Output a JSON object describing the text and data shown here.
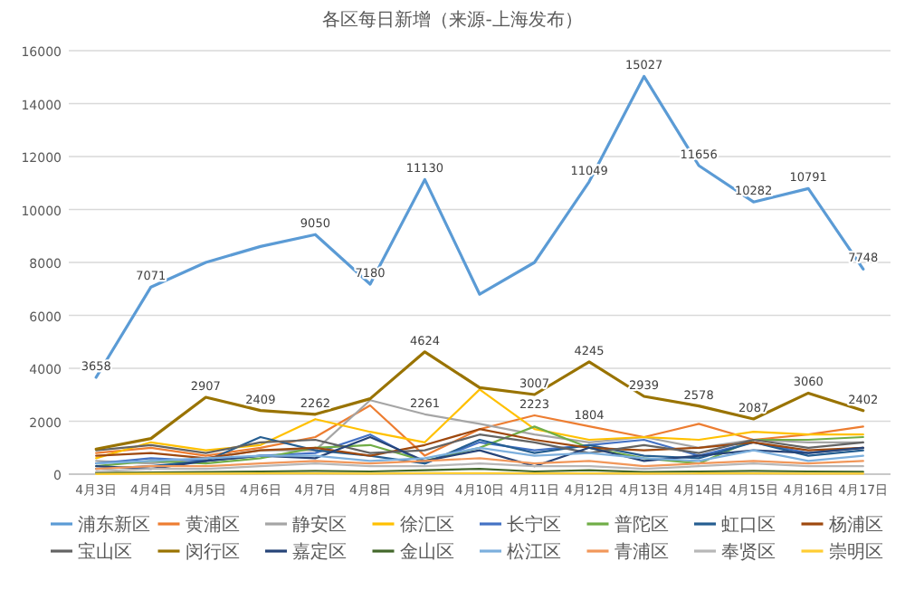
{
  "chart_data": {
    "type": "line",
    "title": "各区每日新增（来源-上海发布）",
    "categories": [
      "4月3日",
      "4月4日",
      "4月5日",
      "4月6日",
      "4月7日",
      "4月8日",
      "4月9日",
      "4月10日",
      "4月11日",
      "4月12日",
      "4月13日",
      "4月14日",
      "4月15日",
      "4月16日",
      "4月17日"
    ],
    "ylim": [
      0,
      16000
    ],
    "yticks": [
      0,
      2000,
      4000,
      6000,
      8000,
      10000,
      12000,
      14000,
      16000
    ],
    "grid": "y",
    "legend": "bottom",
    "marker": "none",
    "series": [
      {
        "name": "浦东新区",
        "color": "#5b9bd5",
        "values": [
          3658,
          7071,
          8000,
          8600,
          9050,
          7180,
          11130,
          6800,
          8000,
          11049,
          15027,
          11656,
          10282,
          10791,
          7748
        ],
        "value_labels": [
          "3658",
          "7071",
          null,
          null,
          "9050",
          "7180",
          "11130",
          null,
          null,
          "11049",
          "15027",
          "11656",
          "10282",
          "10791",
          "7748"
        ]
      },
      {
        "name": "黄浦区",
        "color": "#ed7d31",
        "values": [
          800,
          1000,
          700,
          1000,
          1400,
          2600,
          700,
          1700,
          2223,
          1804,
          1400,
          1900,
          1300,
          1500,
          1800
        ],
        "value_labels": [
          null,
          null,
          null,
          null,
          null,
          null,
          null,
          null,
          "2223",
          "1804",
          null,
          null,
          null,
          null,
          null
        ]
      },
      {
        "name": "静安区",
        "color": "#a5a5a5",
        "values": [
          500,
          400,
          600,
          900,
          900,
          2800,
          2261,
          1900,
          1500,
          1200,
          1400,
          1000,
          1300,
          1200,
          1200
        ],
        "value_labels": [
          null,
          null,
          null,
          null,
          null,
          null,
          "2261",
          null,
          null,
          null,
          null,
          null,
          null,
          null,
          null
        ]
      },
      {
        "name": "徐汇区",
        "color": "#ffc000",
        "values": [
          600,
          1200,
          900,
          1100,
          2076,
          1600,
          1200,
          3200,
          1700,
          1300,
          1400,
          1300,
          1600,
          1500,
          1500
        ]
      },
      {
        "name": "长宁区",
        "color": "#4472c4",
        "values": [
          400,
          600,
          500,
          700,
          800,
          1500,
          400,
          1200,
          900,
          1100,
          1300,
          700,
          1200,
          800,
          1000
        ]
      },
      {
        "name": "普陀区",
        "color": "#70ad47",
        "values": [
          300,
          500,
          400,
          600,
          1000,
          1100,
          500,
          1000,
          1800,
          1000,
          600,
          400,
          1300,
          1300,
          1400
        ]
      },
      {
        "name": "虹口区",
        "color": "#255e91",
        "values": [
          200,
          300,
          500,
          1400,
          900,
          700,
          400,
          1300,
          800,
          1100,
          700,
          600,
          1200,
          700,
          900
        ]
      },
      {
        "name": "杨浦区",
        "color": "#9e480e",
        "values": [
          700,
          800,
          600,
          900,
          1000,
          700,
          1100,
          1700,
          1300,
          1000,
          900,
          1000,
          1200,
          900,
          1000
        ]
      },
      {
        "name": "宝山区",
        "color": "#636363",
        "values": [
          900,
          1100,
          800,
          1200,
          1300,
          800,
          900,
          1500,
          1200,
          800,
          1100,
          800,
          1300,
          1000,
          1200
        ]
      },
      {
        "name": "闵行区",
        "color": "#997300",
        "values": [
          950,
          1350,
          2907,
          2409,
          2262,
          2854,
          4624,
          3269,
          3007,
          4245,
          2939,
          2578,
          2087,
          3060,
          2402
        ],
        "value_labels": [
          null,
          null,
          "2907",
          "2409",
          "2262",
          null,
          "4624",
          null,
          "3007",
          "4245",
          "2939",
          "2578",
          "2087",
          "3060",
          "2402"
        ]
      },
      {
        "name": "嘉定区",
        "color": "#264478",
        "values": [
          300,
          200,
          500,
          700,
          600,
          1400,
          500,
          900,
          300,
          1000,
          500,
          700,
          900,
          800,
          1000
        ]
      },
      {
        "name": "金山区",
        "color": "#43682b",
        "values": [
          50,
          60,
          80,
          100,
          120,
          100,
          150,
          200,
          100,
          150,
          80,
          100,
          120,
          100,
          90
        ]
      },
      {
        "name": "松江区",
        "color": "#7cafdd",
        "values": [
          400,
          500,
          600,
          700,
          700,
          500,
          600,
          1000,
          700,
          800,
          600,
          500,
          900,
          500,
          700
        ]
      },
      {
        "name": "青浦区",
        "color": "#f1975a",
        "values": [
          200,
          300,
          300,
          400,
          500,
          400,
          500,
          600,
          400,
          500,
          300,
          400,
          500,
          400,
          500
        ]
      },
      {
        "name": "奉贤区",
        "color": "#b7b7b7",
        "values": [
          100,
          200,
          200,
          300,
          400,
          300,
          300,
          400,
          300,
          300,
          200,
          300,
          400,
          300,
          300
        ]
      },
      {
        "name": "崇明区",
        "color": "#ffcd33",
        "values": [
          10,
          20,
          20,
          30,
          30,
          20,
          40,
          40,
          30,
          30,
          20,
          30,
          30,
          20,
          20
        ]
      }
    ]
  }
}
